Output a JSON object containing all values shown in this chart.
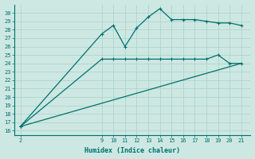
{
  "xlabel": "Humidex (Indice chaleur)",
  "ylabel": "",
  "bg_color": "#cde8e2",
  "line_color": "#007070",
  "grid_color": "#aed4cc",
  "yticks": [
    16,
    17,
    18,
    19,
    20,
    21,
    22,
    23,
    24,
    25,
    26,
    27,
    28,
    29,
    30
  ],
  "ylim": [
    15.5,
    31.0
  ],
  "xlim": [
    1.5,
    21.8
  ],
  "x_ticks": [
    2,
    9,
    10,
    11,
    12,
    13,
    14,
    15,
    16,
    17,
    18,
    19,
    20,
    21
  ],
  "x_labels": [
    "2",
    "9",
    "10",
    "11",
    "12",
    "13",
    "14",
    "15",
    "16",
    "17",
    "18",
    "19",
    "20",
    "21"
  ],
  "line1_x": [
    2,
    9,
    10,
    11,
    12,
    13,
    14,
    15,
    16,
    17,
    18,
    19,
    20,
    21
  ],
  "line1_y": [
    16.5,
    27.5,
    28.5,
    26.0,
    28.2,
    29.5,
    30.5,
    29.2,
    29.2,
    29.2,
    29.0,
    28.8,
    28.8,
    28.5
  ],
  "line2_x": [
    2,
    9,
    10,
    11,
    12,
    13,
    14,
    15,
    16,
    17,
    18,
    19,
    20,
    21
  ],
  "line2_y": [
    16.5,
    24.5,
    24.5,
    24.5,
    24.5,
    24.5,
    24.5,
    24.5,
    24.5,
    24.5,
    24.5,
    25.0,
    24.0,
    24.0
  ],
  "line3_x": [
    2,
    21
  ],
  "line3_y": [
    16.5,
    24.0
  ]
}
